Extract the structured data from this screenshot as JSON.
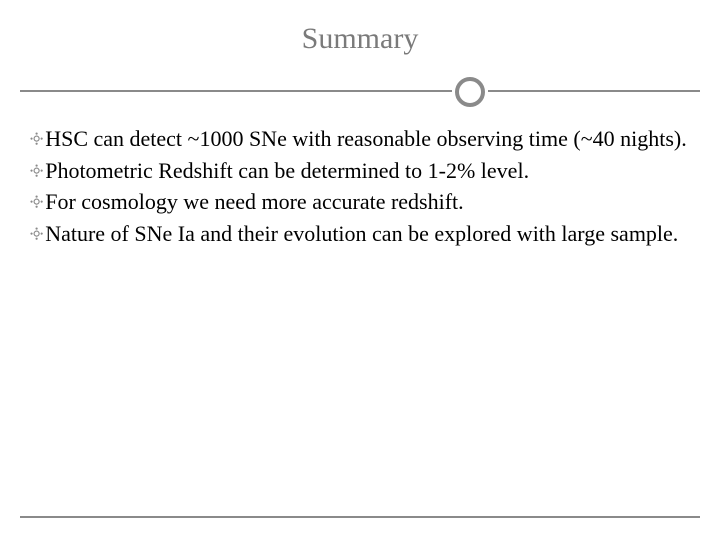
{
  "slide": {
    "title": "Summary",
    "title_color": "#7a7a7a",
    "title_fontsize": 30,
    "divider_color": "#8a8a8a",
    "circle_border_color": "#8a8a8a",
    "circle_border_width": 4,
    "bullet_glyph": "༓",
    "bullet_color": "#8a8a8a",
    "text_color": "#000000",
    "text_fontsize": 22,
    "background_color": "#ffffff",
    "bullets": [
      "HSC can detect ~1000 SNe with reasonable observing time (~40 nights).",
      "Photometric Redshift can be determined to 1-2% level.",
      "For cosmology we need more accurate redshift.",
      "Nature of SNe Ia and their evolution can be explored with large sample."
    ]
  }
}
